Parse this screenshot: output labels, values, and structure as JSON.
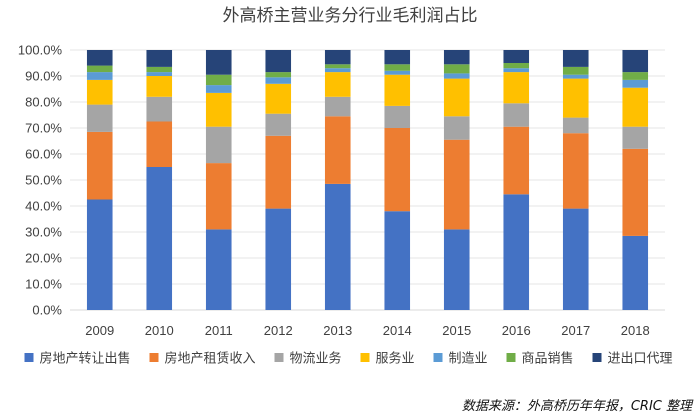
{
  "chart_data": {
    "type": "bar",
    "stacked": true,
    "title": "外高桥主营业务分行业毛利润占比",
    "categories": [
      "2009",
      "2010",
      "2011",
      "2012",
      "2013",
      "2014",
      "2015",
      "2016",
      "2017",
      "2018"
    ],
    "ylim": [
      0,
      100
    ],
    "yticks": [
      "0.0%",
      "10.0%",
      "20.0%",
      "30.0%",
      "40.0%",
      "50.0%",
      "60.0%",
      "70.0%",
      "80.0%",
      "90.0%",
      "100.0%"
    ],
    "grid": true,
    "legend_position": "bottom",
    "series": [
      {
        "name": "房地产转让出售",
        "color": "#4472C4",
        "values": [
          42.5,
          55,
          31,
          39,
          48.5,
          38,
          31,
          44.5,
          39,
          28.5
        ]
      },
      {
        "name": "房地产租赁收入",
        "color": "#ED7D31",
        "values": [
          26,
          17.5,
          25.5,
          28,
          26,
          32,
          34.5,
          26,
          29,
          33.5
        ]
      },
      {
        "name": "物流业务",
        "color": "#A5A5A5",
        "values": [
          10.5,
          9.5,
          14,
          8.5,
          7.5,
          8.5,
          9,
          9,
          6,
          8.5
        ]
      },
      {
        "name": "服务业",
        "color": "#FFC000",
        "values": [
          9.5,
          8,
          13,
          11.5,
          9.5,
          12,
          14.5,
          12,
          15,
          15
        ]
      },
      {
        "name": "制造业",
        "color": "#5B9BD5",
        "values": [
          3,
          1.5,
          3,
          2.5,
          1.5,
          1.5,
          2,
          1.5,
          1.5,
          3
        ]
      },
      {
        "name": "商品销售",
        "color": "#70AD47",
        "values": [
          2.5,
          2,
          4,
          2,
          1.5,
          2.5,
          3.5,
          2,
          3,
          3
        ]
      },
      {
        "name": "进出口代理",
        "color": "#264478",
        "values": [
          6,
          6.5,
          9.5,
          8.5,
          5.5,
          5.5,
          5.5,
          5,
          6.5,
          8.5
        ]
      }
    ],
    "source": "数据来源：外高桥历年年报，CRIC 整理"
  }
}
